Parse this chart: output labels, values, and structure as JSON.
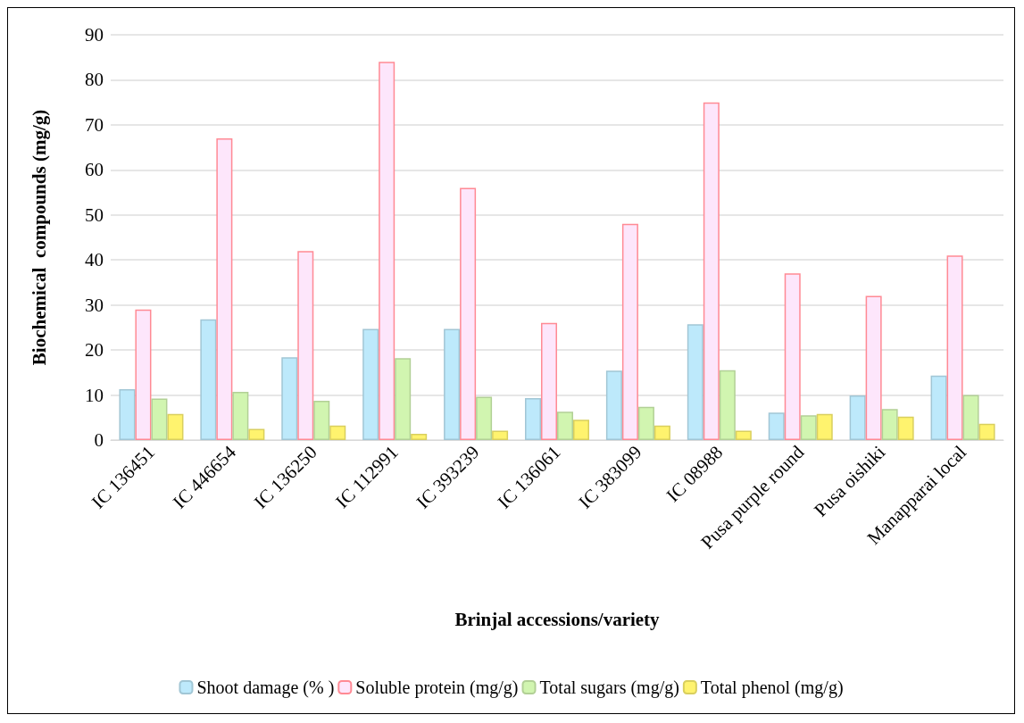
{
  "chart_data": {
    "type": "bar",
    "xlabel": "Brinjal accessions/variety",
    "ylabel": "Biochemical  compounds (mg/g)",
    "categories": [
      "IC 136451",
      "IC 446654",
      "IC 136250",
      "IC 112991",
      "IC 393239",
      "IC 136061",
      "IC 383099",
      "IC 08988",
      "Pusa purple round",
      "Pusa oishiki",
      "Manapparai local"
    ],
    "series": [
      {
        "name": "Shoot damage (% )",
        "color": "#bde9fb",
        "values": [
          11.3,
          26.8,
          18.4,
          24.7,
          24.7,
          9.3,
          15.4,
          25.7,
          6.1,
          9.9,
          14.3
        ]
      },
      {
        "name": "Soluble protein (mg/g)",
        "color": "#fde6fb",
        "values": [
          29,
          67,
          42,
          84,
          56,
          26,
          48,
          75,
          37,
          32,
          41
        ]
      },
      {
        "name": "Total sugars (mg/g)",
        "color": "#d1f5b0",
        "values": [
          9.2,
          10.7,
          8.7,
          18.2,
          9.6,
          6.3,
          7.4,
          15.5,
          5.5,
          6.9,
          10.0
        ]
      },
      {
        "name": "Total phenol (mg/g)",
        "color": "#fff36e",
        "values": [
          5.8,
          2.5,
          3.2,
          1.4,
          2.1,
          4.5,
          3.2,
          2.1,
          5.8,
          5.2,
          3.6
        ]
      }
    ],
    "ylim": [
      0,
      90
    ],
    "yticks": [
      0,
      10,
      20,
      30,
      40,
      50,
      60,
      70,
      80,
      90
    ],
    "grid": "y",
    "legend": "bottom"
  }
}
